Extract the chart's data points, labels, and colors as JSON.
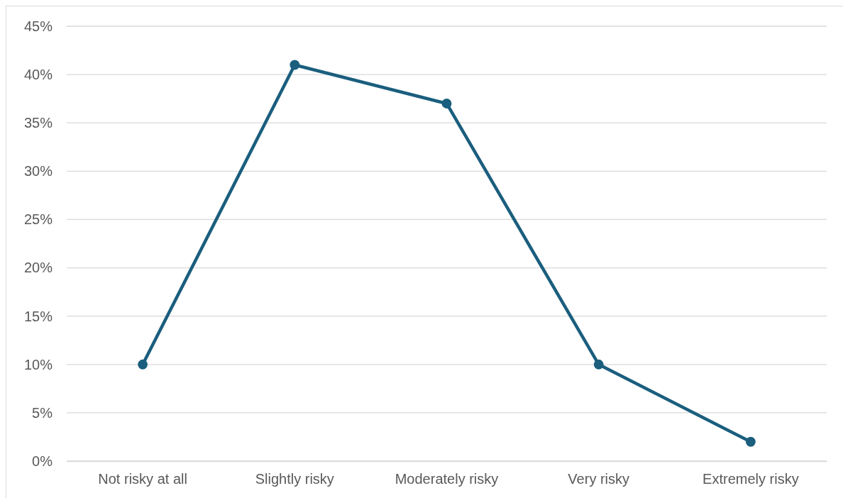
{
  "chart_data": {
    "type": "line",
    "categories": [
      "Not risky at all",
      "Slightly risky",
      "Moderately risky",
      "Very risky",
      "Extremely risky"
    ],
    "series": [
      {
        "color": "#1b5e7e",
        "values": [
          10,
          41,
          37,
          10,
          2
        ]
      }
    ],
    "ylim": [
      0,
      45
    ],
    "yticks": [
      {
        "value": 0,
        "label": "0%"
      },
      {
        "value": 5,
        "label": "5%"
      },
      {
        "value": 10,
        "label": "10%"
      },
      {
        "value": 15,
        "label": "15%"
      },
      {
        "value": 20,
        "label": "20%"
      },
      {
        "value": 25,
        "label": "25%"
      },
      {
        "value": 30,
        "label": "30%"
      },
      {
        "value": 35,
        "label": "35%"
      },
      {
        "value": 40,
        "label": "40%"
      },
      {
        "value": 45,
        "label": "45%"
      }
    ],
    "grid": "y",
    "marker": "circle",
    "line_style": "solid"
  }
}
